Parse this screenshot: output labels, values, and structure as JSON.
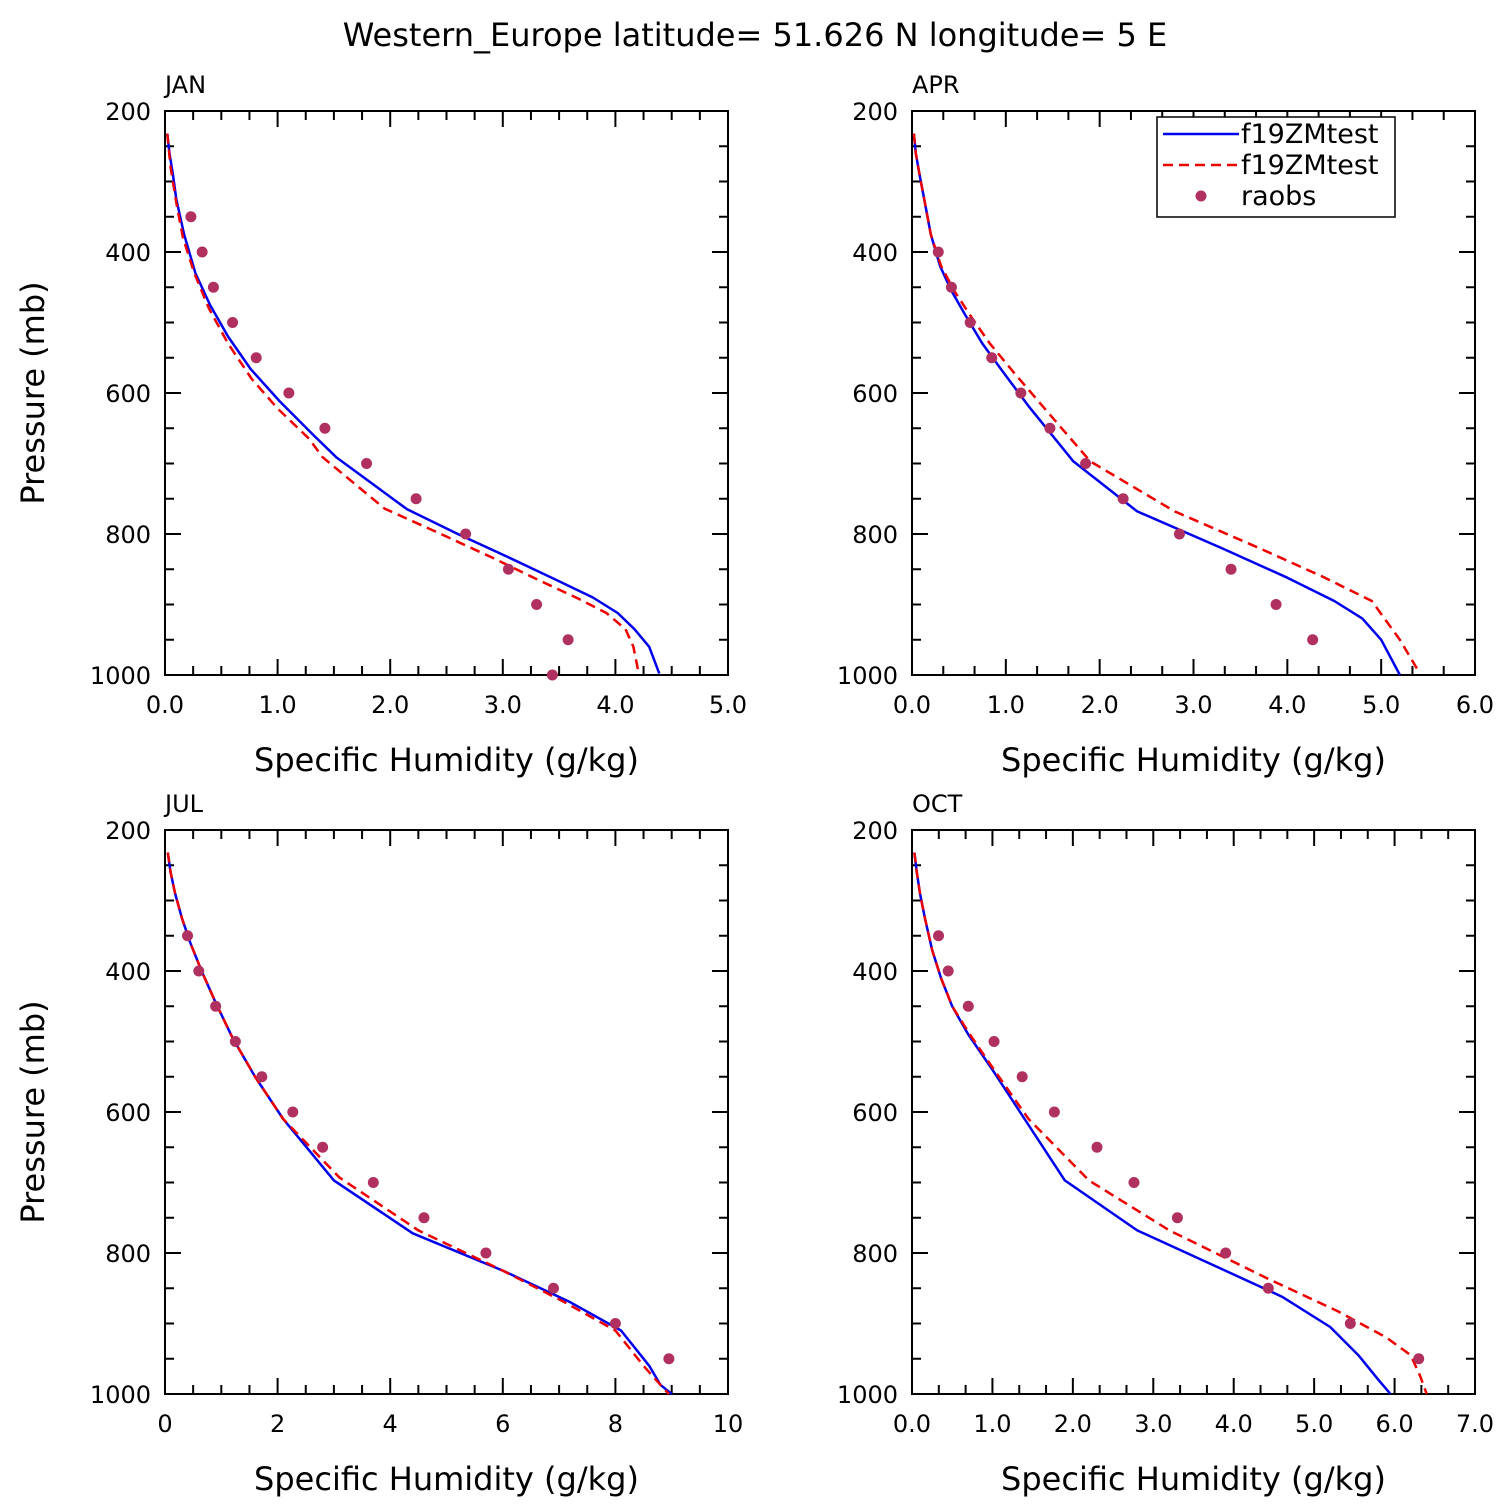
{
  "figure": {
    "title": "Western_Europe  latitude= 51.626 N longitude= 5 E"
  },
  "chart_data": [
    {
      "type": "line",
      "panel_label": "JAN",
      "xlabel": "Specific Humidity (g/kg)",
      "ylabel": "Pressure (mb)",
      "xlim": [
        0,
        5
      ],
      "ylim": [
        1000,
        200
      ],
      "xticks": [
        "0.0",
        "1.0",
        "2.0",
        "3.0",
        "4.0",
        "5.0"
      ],
      "yticks": [
        "200",
        "400",
        "600",
        "800",
        "1000"
      ],
      "series": [
        {
          "name": "f19ZMtest",
          "style": "solid",
          "color": "#0000ee",
          "x": [
            0.02,
            0.04,
            0.07,
            0.1,
            0.17,
            0.27,
            0.4,
            0.56,
            0.76,
            1.02,
            1.32,
            1.52,
            2.15,
            2.6,
            3.05,
            3.46,
            3.8,
            4.02,
            4.17,
            4.3,
            4.39
          ],
          "y": [
            232,
            260,
            290,
            325,
            375,
            430,
            475,
            520,
            566,
            612,
            660,
            691,
            765,
            800,
            833,
            864,
            890,
            912,
            935,
            960,
            998
          ]
        },
        {
          "name": "f19ZMtest",
          "style": "dashed",
          "color": "#ee0000",
          "x": [
            0.02,
            0.05,
            0.1,
            0.16,
            0.26,
            0.39,
            0.56,
            0.77,
            1.0,
            1.28,
            1.4,
            1.95,
            2.45,
            2.9,
            3.3,
            3.65,
            3.92,
            4.09,
            4.16,
            4.2
          ],
          "y": [
            232,
            280,
            330,
            380,
            430,
            480,
            530,
            580,
            622,
            665,
            691,
            764,
            800,
            833,
            864,
            890,
            912,
            935,
            960,
            992
          ]
        },
        {
          "name": "raobs",
          "style": "dots",
          "color": "#b03060",
          "x": [
            0.23,
            0.33,
            0.43,
            0.6,
            0.81,
            1.1,
            1.42,
            1.79,
            2.23,
            2.67,
            3.05,
            3.3,
            3.58,
            3.44
          ],
          "y": [
            350,
            400,
            450,
            500,
            550,
            600,
            650,
            700,
            750,
            800,
            850,
            900,
            950,
            1000
          ]
        }
      ]
    },
    {
      "type": "line",
      "panel_label": "APR",
      "xlabel": "Specific Humidity (g/kg)",
      "ylabel": "",
      "xlim": [
        0,
        6
      ],
      "ylim": [
        1000,
        200
      ],
      "xticks": [
        "0.0",
        "1.0",
        "2.0",
        "3.0",
        "4.0",
        "5.0",
        "6.0"
      ],
      "yticks": [
        "200",
        "400",
        "600",
        "800",
        "1000"
      ],
      "legend": {
        "placement": "top-right",
        "entries": [
          "f19ZMtest",
          "f19ZMtest",
          "raobs"
        ]
      },
      "series": [
        {
          "name": "f19ZMtest",
          "style": "solid",
          "color": "#0000ee",
          "x": [
            0.02,
            0.04,
            0.08,
            0.13,
            0.2,
            0.3,
            0.42,
            0.57,
            0.75,
            0.97,
            1.25,
            1.72,
            2.4,
            3.3,
            4.0,
            4.5,
            4.8,
            5.0,
            5.2
          ],
          "y": [
            232,
            260,
            290,
            325,
            375,
            420,
            455,
            490,
            530,
            570,
            620,
            697,
            768,
            820,
            862,
            895,
            920,
            950,
            1000
          ]
        },
        {
          "name": "f19ZMtest",
          "style": "dashed",
          "color": "#ee0000",
          "x": [
            0.02,
            0.04,
            0.08,
            0.13,
            0.2,
            0.31,
            0.45,
            0.62,
            0.83,
            1.08,
            1.4,
            1.9,
            2.8,
            3.7,
            4.4,
            4.9,
            5.2,
            5.4
          ],
          "y": [
            232,
            260,
            290,
            325,
            375,
            420,
            455,
            490,
            530,
            570,
            620,
            697,
            768,
            820,
            862,
            895,
            950,
            995
          ]
        },
        {
          "name": "raobs",
          "style": "dots",
          "color": "#b03060",
          "x": [
            0.28,
            0.42,
            0.62,
            0.85,
            1.16,
            1.47,
            1.85,
            2.25,
            2.85,
            3.4,
            3.88,
            4.27
          ],
          "y": [
            400,
            450,
            500,
            550,
            600,
            650,
            700,
            750,
            800,
            850,
            900,
            950
          ]
        }
      ]
    },
    {
      "type": "line",
      "panel_label": "JUL",
      "xlabel": "Specific Humidity (g/kg)",
      "ylabel": "Pressure (mb)",
      "xlim": [
        0,
        10
      ],
      "ylim": [
        1000,
        200
      ],
      "xticks": [
        "0",
        "2",
        "4",
        "6",
        "8",
        "10"
      ],
      "yticks": [
        "200",
        "400",
        "600",
        "800",
        "1000"
      ],
      "series": [
        {
          "name": "f19ZMtest",
          "style": "solid",
          "color": "#0000ee",
          "x": [
            0.05,
            0.1,
            0.18,
            0.3,
            0.45,
            0.65,
            0.9,
            1.2,
            1.6,
            2.1,
            3.0,
            4.4,
            6.0,
            7.2,
            8.1,
            8.6,
            8.8,
            9.0
          ],
          "y": [
            232,
            260,
            290,
            325,
            360,
            400,
            445,
            495,
            550,
            610,
            697,
            772,
            825,
            870,
            910,
            960,
            987,
            1000
          ]
        },
        {
          "name": "f19ZMtest",
          "style": "dashed",
          "color": "#ee0000",
          "x": [
            0.05,
            0.1,
            0.18,
            0.3,
            0.45,
            0.65,
            0.9,
            1.2,
            1.6,
            2.1,
            3.1,
            4.5,
            6.0,
            7.1,
            8.0,
            8.5,
            8.8,
            8.95
          ],
          "y": [
            232,
            260,
            290,
            325,
            360,
            400,
            445,
            495,
            550,
            610,
            693,
            768,
            825,
            870,
            910,
            960,
            987,
            1000
          ]
        },
        {
          "name": "raobs",
          "style": "dots",
          "color": "#b03060",
          "x": [
            0.4,
            0.6,
            0.9,
            1.25,
            1.72,
            2.27,
            2.8,
            3.7,
            4.6,
            5.7,
            6.9,
            8.0,
            8.95
          ],
          "y": [
            350,
            400,
            450,
            500,
            550,
            600,
            650,
            700,
            750,
            800,
            850,
            900,
            950
          ]
        }
      ]
    },
    {
      "type": "line",
      "panel_label": "OCT",
      "xlabel": "Specific Humidity (g/kg)",
      "ylabel": "",
      "xlim": [
        0,
        7
      ],
      "ylim": [
        1000,
        200
      ],
      "xticks": [
        "0.0",
        "1.0",
        "2.0",
        "3.0",
        "4.0",
        "5.0",
        "6.0",
        "7.0"
      ],
      "yticks": [
        "200",
        "400",
        "600",
        "800",
        "1000"
      ],
      "series": [
        {
          "name": "f19ZMtest",
          "style": "solid",
          "color": "#0000ee",
          "x": [
            0.03,
            0.06,
            0.1,
            0.16,
            0.25,
            0.36,
            0.5,
            0.7,
            1.0,
            1.4,
            1.9,
            2.8,
            3.8,
            4.6,
            5.2,
            5.55,
            5.8,
            5.95
          ],
          "y": [
            232,
            260,
            290,
            325,
            370,
            410,
            450,
            490,
            540,
            610,
            697,
            768,
            820,
            862,
            905,
            945,
            980,
            1000
          ]
        },
        {
          "name": "f19ZMtest",
          "style": "dashed",
          "color": "#ee0000",
          "x": [
            0.03,
            0.06,
            0.1,
            0.16,
            0.25,
            0.36,
            0.5,
            0.72,
            1.02,
            1.45,
            2.2,
            3.2,
            4.4,
            5.3,
            5.9,
            6.2,
            6.32,
            6.4
          ],
          "y": [
            232,
            260,
            290,
            325,
            370,
            410,
            450,
            490,
            540,
            610,
            697,
            768,
            835,
            883,
            920,
            945,
            975,
            1000
          ]
        },
        {
          "name": "raobs",
          "style": "dots",
          "color": "#b03060",
          "x": [
            0.33,
            0.45,
            0.7,
            1.02,
            1.37,
            1.77,
            2.3,
            2.76,
            3.3,
            3.9,
            4.43,
            5.45,
            6.3
          ],
          "y": [
            350,
            400,
            450,
            500,
            550,
            600,
            650,
            700,
            750,
            800,
            850,
            900,
            950
          ]
        }
      ]
    }
  ]
}
